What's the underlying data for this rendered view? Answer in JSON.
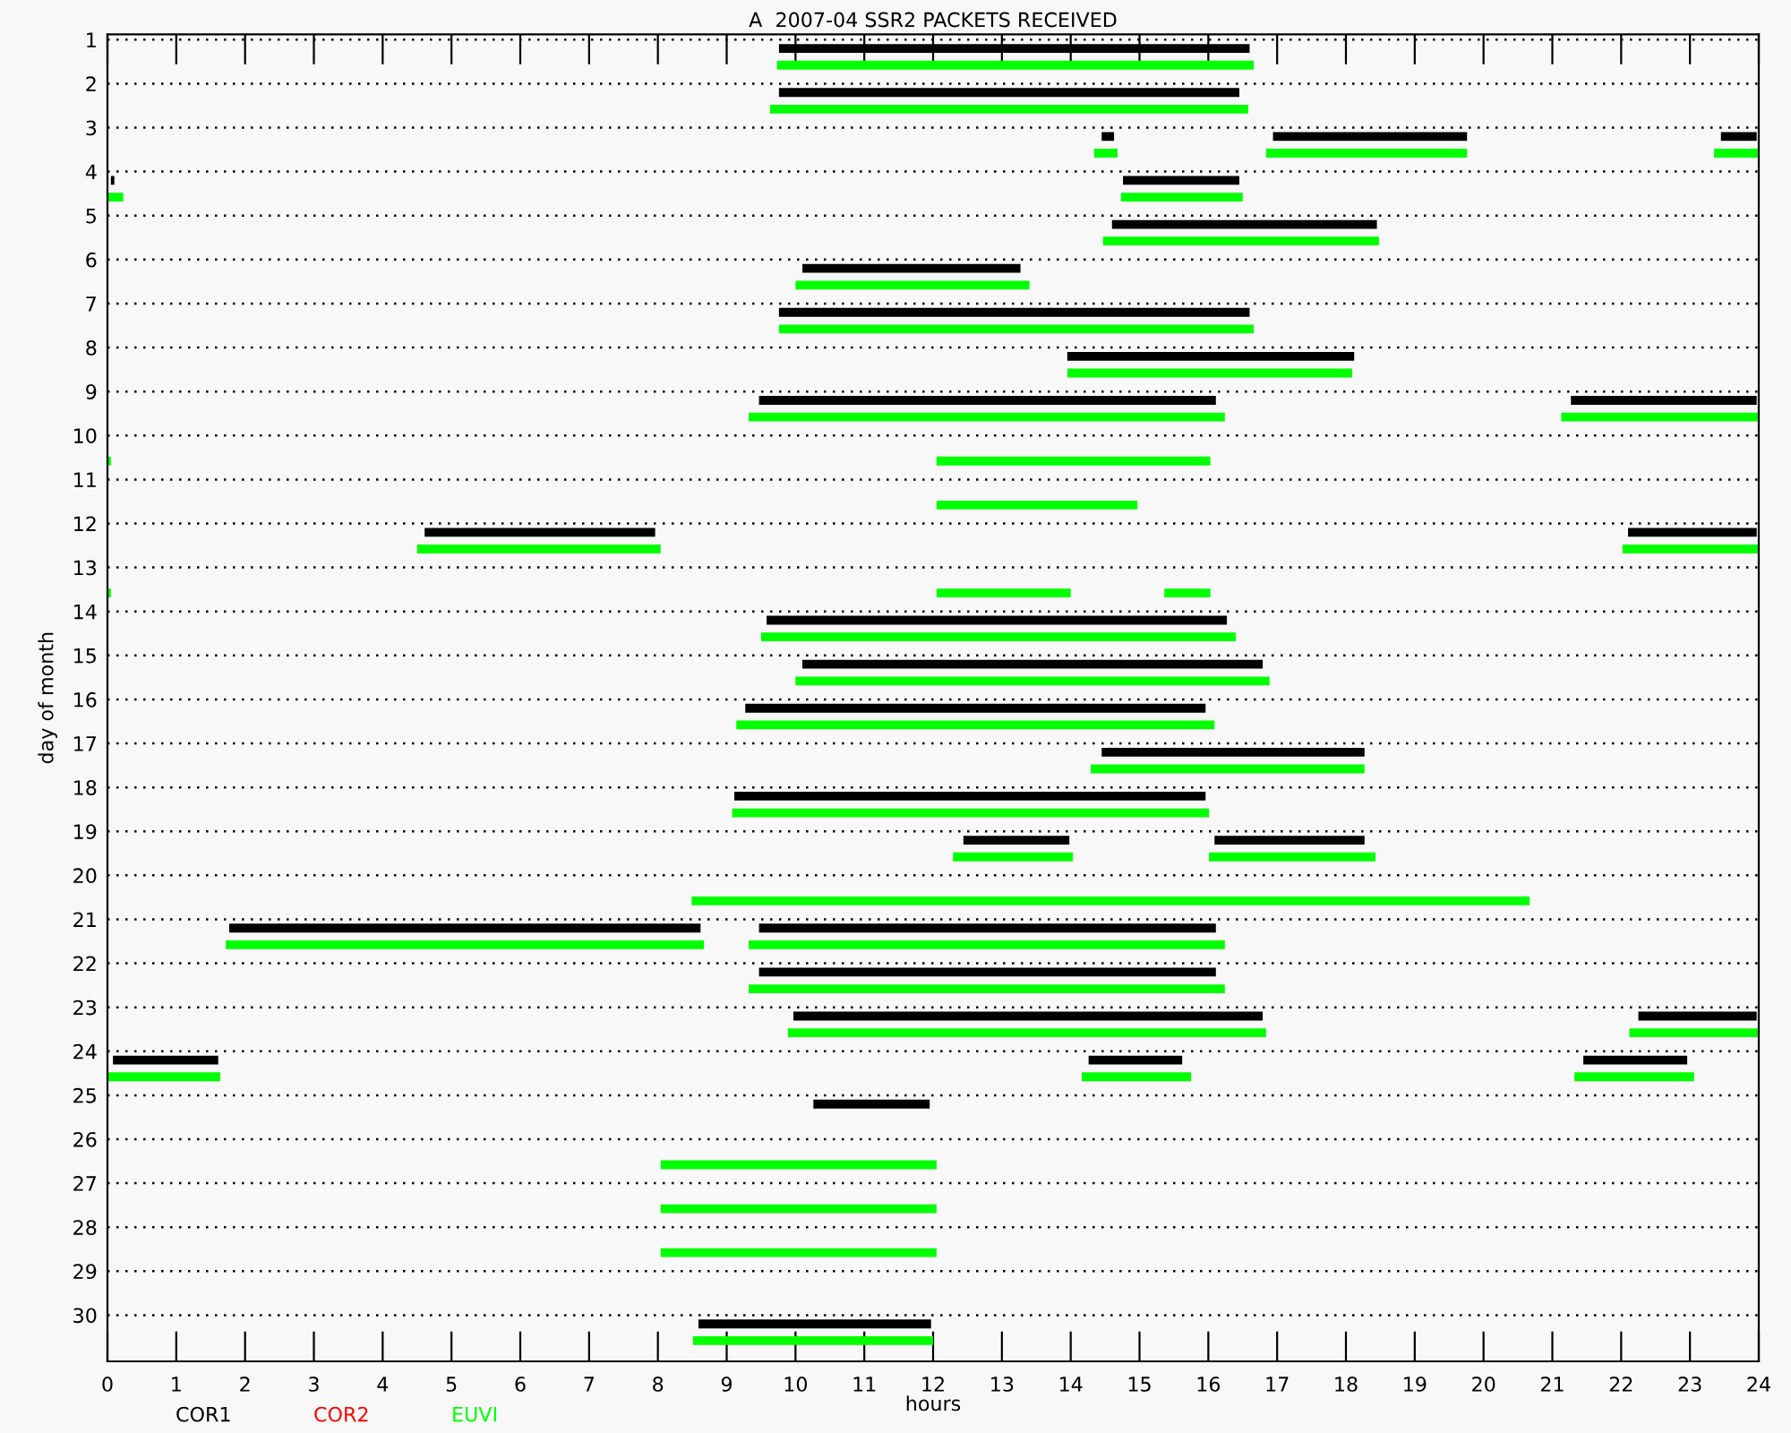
{
  "chart_data": {
    "type": "bar",
    "orientation": "horizontal",
    "title": "A  2007-04 SSR2 PACKETS RECEIVED",
    "xlabel": "hours",
    "ylabel": "day of month",
    "categories": [
      "1",
      "2",
      "3",
      "4",
      "5",
      "6",
      "7",
      "8",
      "9",
      "10",
      "11",
      "12",
      "13",
      "14",
      "15",
      "16",
      "17",
      "18",
      "19",
      "20",
      "21",
      "22",
      "23",
      "24",
      "25",
      "26",
      "27",
      "28",
      "29",
      "30"
    ],
    "series": [
      {
        "name": "COR1",
        "color": "#000000",
        "base": [
          9.76,
          9.76,
          14.45,
          0.05,
          14.6,
          10.1,
          9.76,
          13.95,
          9.47,
          null,
          null,
          4.61,
          null,
          9.58,
          10.1,
          9.27,
          14.45,
          9.11,
          12.44,
          null,
          1.77,
          9.47,
          9.97,
          0.08,
          10.26,
          null,
          null,
          null,
          null,
          8.59
        ],
        "values": [
          6.84,
          6.69,
          0.18,
          0.05,
          3.85,
          3.17,
          6.84,
          4.17,
          6.64,
          null,
          null,
          3.35,
          null,
          6.69,
          6.69,
          6.69,
          3.82,
          6.85,
          1.54,
          null,
          6.85,
          6.64,
          6.82,
          1.53,
          1.69,
          null,
          null,
          null,
          null,
          3.38
        ]
      },
      {
        "color": "#000000",
        "base": [
          null,
          null,
          16.94,
          14.76,
          null,
          null,
          null,
          null,
          21.27,
          null,
          null,
          22.1,
          null,
          null,
          null,
          null,
          null,
          null,
          16.09,
          null,
          9.47,
          null,
          22.25,
          14.26,
          null,
          null,
          null,
          null,
          null,
          null
        ],
        "values": [
          null,
          null,
          2.82,
          1.69,
          null,
          null,
          null,
          null,
          2.7,
          null,
          null,
          1.87,
          null,
          null,
          null,
          null,
          null,
          null,
          2.18,
          null,
          6.64,
          null,
          1.72,
          1.36,
          null,
          null,
          null,
          null,
          null,
          null
        ]
      },
      {
        "color": "#000000",
        "base": [
          null,
          null,
          23.45,
          null,
          null,
          null,
          null,
          null,
          null,
          null,
          null,
          null,
          null,
          null,
          null,
          null,
          null,
          null,
          null,
          null,
          null,
          null,
          null,
          21.45,
          null,
          null,
          null,
          null,
          null,
          null
        ],
        "values": [
          null,
          null,
          0.52,
          null,
          null,
          null,
          null,
          null,
          null,
          null,
          null,
          null,
          null,
          null,
          null,
          null,
          null,
          null,
          null,
          null,
          null,
          null,
          null,
          1.51,
          null,
          null,
          null,
          null,
          null,
          null
        ]
      },
      {
        "name": "COR2",
        "color": "#ff0000",
        "base": [
          null,
          null,
          null,
          null,
          null,
          null,
          null,
          null,
          null,
          null,
          null,
          null,
          null,
          null,
          null,
          null,
          null,
          null,
          null,
          null,
          null,
          null,
          null,
          null,
          null,
          null,
          null,
          null,
          null,
          null
        ],
        "values": [
          null,
          null,
          null,
          null,
          null,
          null,
          null,
          null,
          null,
          null,
          null,
          null,
          null,
          null,
          null,
          null,
          null,
          null,
          null,
          null,
          null,
          null,
          null,
          null,
          null,
          null,
          null,
          null,
          null,
          null
        ]
      },
      {
        "name": "EUVI",
        "color": "#00ff00",
        "base": [
          9.73,
          9.63,
          14.34,
          0,
          14.47,
          10.0,
          9.76,
          13.95,
          9.32,
          0,
          12.05,
          4.5,
          0,
          9.5,
          10.0,
          9.14,
          14.29,
          9.08,
          12.29,
          8.49,
          1.72,
          9.32,
          9.89,
          0,
          null,
          8.04,
          8.04,
          8.04,
          null,
          8.51
        ],
        "values": [
          6.93,
          6.95,
          0.34,
          0.23,
          4.01,
          3.4,
          6.9,
          4.14,
          6.92,
          0.05,
          2.92,
          3.54,
          0.05,
          6.9,
          6.89,
          6.95,
          3.98,
          6.93,
          1.74,
          12.18,
          6.95,
          6.92,
          6.95,
          1.64,
          null,
          4.01,
          4.01,
          4.01,
          null,
          3.49
        ]
      },
      {
        "color": "#00ff00",
        "base": [
          null,
          null,
          16.84,
          14.73,
          null,
          null,
          null,
          null,
          21.13,
          12.05,
          null,
          22.02,
          12.05,
          null,
          null,
          null,
          null,
          null,
          16.01,
          null,
          9.32,
          null,
          22.12,
          14.16,
          null,
          null,
          null,
          null,
          null,
          null
        ],
        "values": [
          null,
          null,
          2.92,
          1.77,
          null,
          null,
          null,
          null,
          2.87,
          3.98,
          null,
          1.98,
          1.95,
          null,
          null,
          null,
          null,
          null,
          2.42,
          null,
          6.92,
          null,
          1.88,
          1.59,
          null,
          null,
          null,
          null,
          null,
          null
        ]
      },
      {
        "color": "#00ff00",
        "base": [
          null,
          null,
          23.35,
          null,
          null,
          null,
          null,
          null,
          null,
          null,
          null,
          null,
          15.36,
          null,
          null,
          null,
          null,
          null,
          null,
          null,
          null,
          null,
          null,
          21.32,
          null,
          null,
          null,
          null,
          null,
          null
        ],
        "values": [
          null,
          null,
          0.65,
          null,
          null,
          null,
          null,
          null,
          null,
          null,
          null,
          null,
          0.67,
          null,
          null,
          null,
          null,
          null,
          null,
          null,
          null,
          null,
          null,
          1.74,
          null,
          null,
          null,
          null,
          null,
          null
        ]
      }
    ],
    "xlim": [
      0,
      24
    ],
    "xticks": [
      0,
      1,
      2,
      3,
      4,
      5,
      6,
      7,
      8,
      9,
      10,
      11,
      12,
      13,
      14,
      15,
      16,
      17,
      18,
      19,
      20,
      21,
      22,
      23,
      24
    ],
    "grid": "y",
    "legend": "bottom"
  }
}
